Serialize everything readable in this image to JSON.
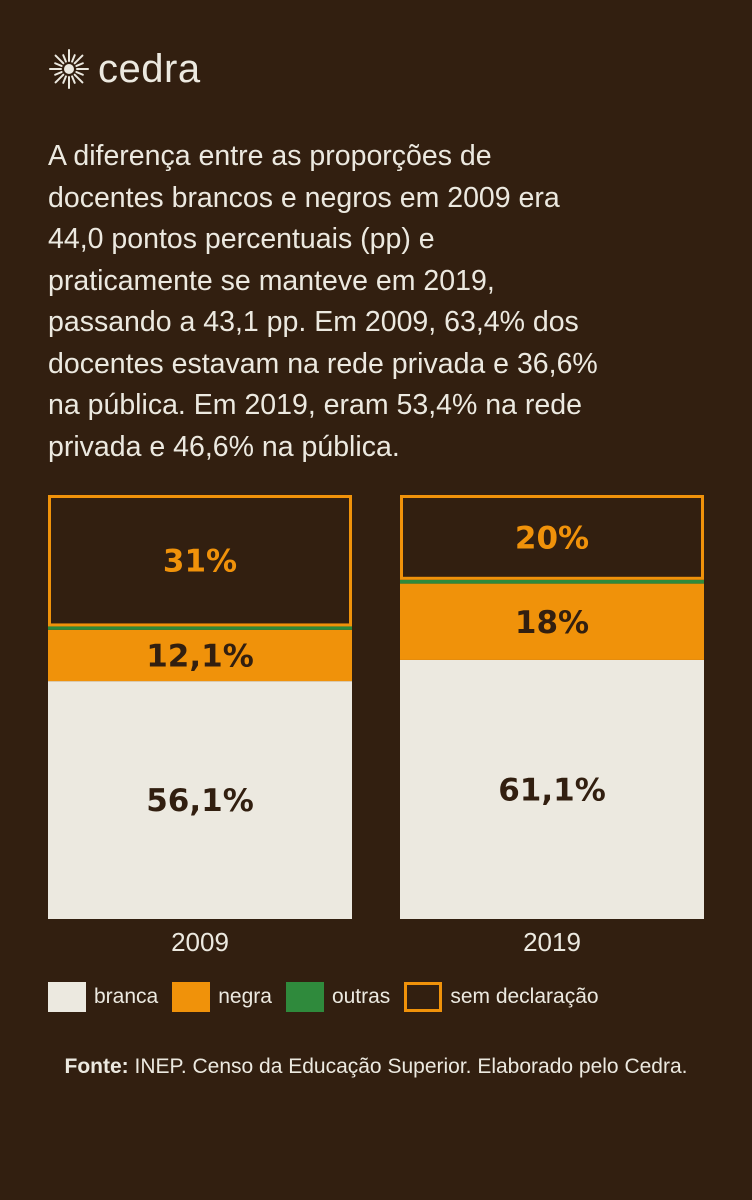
{
  "brand": {
    "name": "cedra",
    "logo_icon": "sun-burst-icon"
  },
  "intro_text": "A diferença entre as proporções de\ndocentes brancos e negros em 2009 era\n44,0 pontos percentuais (pp) e\npraticamente se manteve em 2019,\npassando a 43,1 pp.  Em 2009, 63,4% dos\ndocentes estavam na rede privada e 36,6%\nna pública. Em 2019, eram 53,4% na rede\nprivada e 46,6% na pública.",
  "colors": {
    "background": "#321f10",
    "branca": "#ece9e0",
    "negra": "#f0920a",
    "outras": "#2f8a3c",
    "sem_declaracao_border": "#f0920a",
    "text_light": "#ece9e0",
    "text_dark": "#321f10"
  },
  "chart_data": {
    "type": "bar",
    "stacked": true,
    "categories": [
      "2009",
      "2019"
    ],
    "series": [
      {
        "name": "branca",
        "values": [
          56.1,
          61.1
        ],
        "labels": [
          "56,1%",
          "61,1%"
        ]
      },
      {
        "name": "negra",
        "values": [
          12.1,
          18.0
        ],
        "labels": [
          "12,1%",
          "18%"
        ]
      },
      {
        "name": "outras",
        "values": [
          0.8,
          0.9
        ],
        "labels": [
          "",
          ""
        ]
      },
      {
        "name": "sem declaração",
        "values": [
          31.0,
          20.0
        ],
        "labels": [
          "31%",
          "20%"
        ]
      }
    ],
    "ylim": [
      0,
      100
    ],
    "legend_position": "bottom"
  },
  "legend": [
    {
      "key": "branca",
      "label": "branca"
    },
    {
      "key": "negra",
      "label": "negra"
    },
    {
      "key": "outras",
      "label": "outras"
    },
    {
      "key": "sem_declaracao",
      "label": "sem declaração"
    }
  ],
  "source": {
    "prefix": "Fonte:",
    "text": " INEP. Censo da Educação Superior. Elaborado pelo Cedra."
  }
}
